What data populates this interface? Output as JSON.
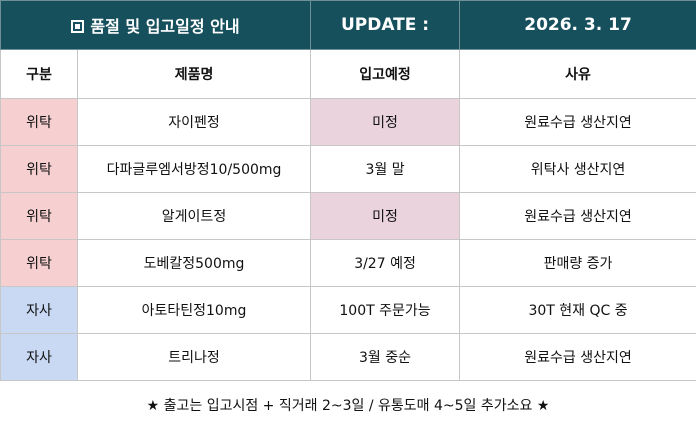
{
  "header": {
    "title": "품절 및 입고일정 안내",
    "update_label": "UPDATE :",
    "date": "2026. 3. 17",
    "icon": "square-bullet-icon"
  },
  "columns": [
    "구분",
    "제품명",
    "입고예정",
    "사유"
  ],
  "rows": [
    {
      "type": "위탁",
      "product": "자이펜정",
      "arrival": "미정",
      "reason": "원료수급 생산지연"
    },
    {
      "type": "위탁",
      "product": "다파글루엠서방정10/500mg",
      "arrival": "3월 말",
      "reason": "위탁사 생산지연"
    },
    {
      "type": "위탁",
      "product": "알게이트정",
      "arrival": "미정",
      "reason": "원료수급 생산지연"
    },
    {
      "type": "위탁",
      "product": "도베칼정500mg",
      "arrival": "3/27 예정",
      "reason": "판매량 증가"
    },
    {
      "type": "자사",
      "product": "아토타틴정10mg",
      "arrival": "100T 주문가능",
      "reason": "30T 현재 QC 중"
    },
    {
      "type": "자사",
      "product": "트리나정",
      "arrival": "3월 중순",
      "reason": "원료수급 생산지연"
    }
  ],
  "footer": "★ 출고는 입고시점 + 직거래 2~3일 / 유통도매 4~5일 추가소요 ★",
  "colors": {
    "header_bg": "#17505d",
    "type_consign_bg": "#f6cfd0",
    "type_own_bg": "#c9d9f3",
    "undecided_bg": "#ead3dd"
  }
}
